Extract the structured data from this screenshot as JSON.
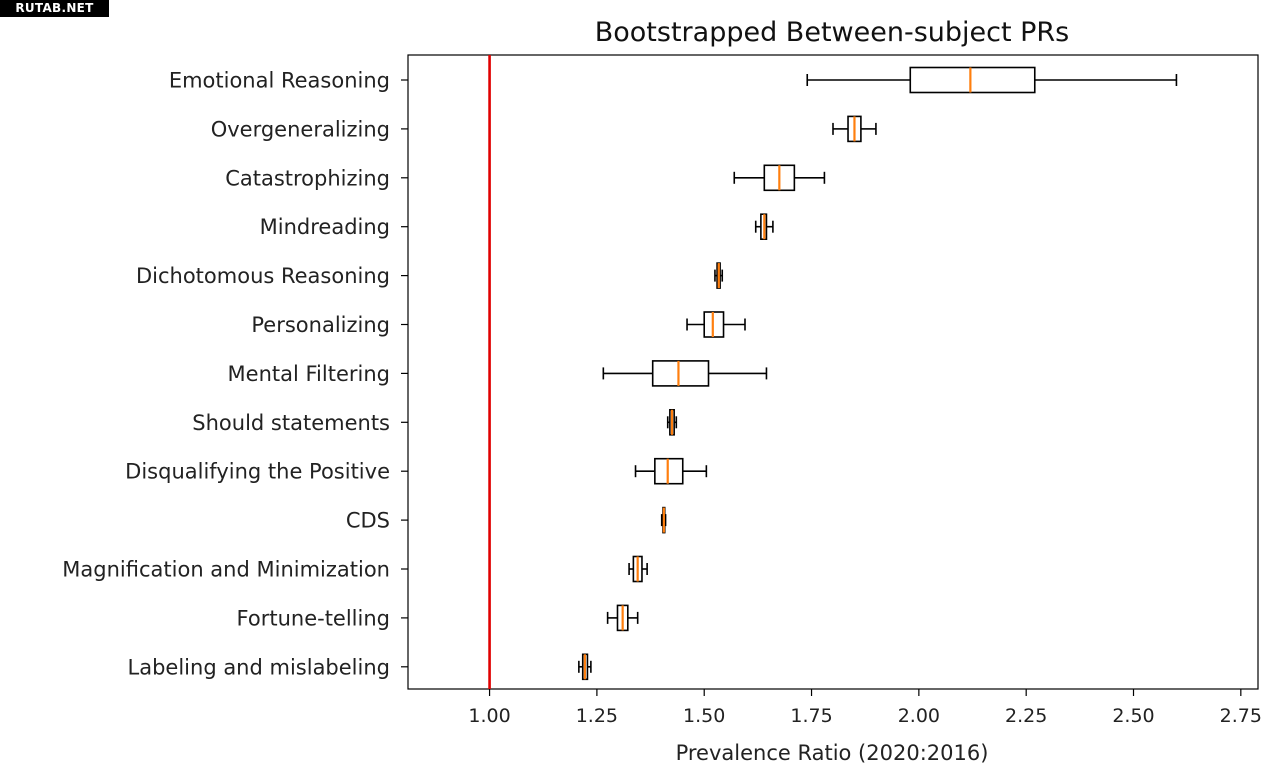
{
  "watermark": "RUTAB.NET",
  "chart_data": {
    "type": "boxplot",
    "orientation": "horizontal",
    "title": "Bootstrapped Between-subject PRs",
    "xlabel": "Prevalence Ratio (2020:2016)",
    "ylabel": "",
    "xlim": [
      0.81,
      2.79
    ],
    "xticks": [
      "1.00",
      "1.25",
      "1.50",
      "1.75",
      "2.00",
      "2.25",
      "2.50",
      "2.75"
    ],
    "reference_line": {
      "x": 1.0,
      "color": "#e00000"
    },
    "colors": {
      "box": "#000000",
      "median": "#ff7f0e",
      "reference": "#e00000"
    },
    "grid": false,
    "legend": "none",
    "categories": [
      "Emotional Reasoning",
      "Overgeneralizing",
      "Catastrophizing",
      "Mindreading",
      "Dichotomous Reasoning",
      "Personalizing",
      "Mental Filtering",
      "Should statements",
      "Disqualifying the Positive",
      "CDS",
      "Magnification and Minimization",
      "Fortune-telling",
      "Labeling and mislabeling"
    ],
    "boxes": [
      {
        "whisker_low": 1.74,
        "q1": 1.98,
        "median": 2.12,
        "q3": 2.27,
        "whisker_high": 2.6
      },
      {
        "whisker_low": 1.8,
        "q1": 1.835,
        "median": 1.85,
        "q3": 1.865,
        "whisker_high": 1.9
      },
      {
        "whisker_low": 1.57,
        "q1": 1.64,
        "median": 1.675,
        "q3": 1.71,
        "whisker_high": 1.78
      },
      {
        "whisker_low": 1.62,
        "q1": 1.632,
        "median": 1.64,
        "q3": 1.645,
        "whisker_high": 1.66
      },
      {
        "whisker_low": 1.525,
        "q1": 1.53,
        "median": 1.534,
        "q3": 1.537,
        "whisker_high": 1.542
      },
      {
        "whisker_low": 1.46,
        "q1": 1.5,
        "median": 1.52,
        "q3": 1.545,
        "whisker_high": 1.595
      },
      {
        "whisker_low": 1.265,
        "q1": 1.38,
        "median": 1.44,
        "q3": 1.51,
        "whisker_high": 1.645
      },
      {
        "whisker_low": 1.415,
        "q1": 1.42,
        "median": 1.425,
        "q3": 1.43,
        "whisker_high": 1.435
      },
      {
        "whisker_low": 1.34,
        "q1": 1.385,
        "median": 1.415,
        "q3": 1.45,
        "whisker_high": 1.505
      },
      {
        "whisker_low": 1.401,
        "q1": 1.404,
        "median": 1.406,
        "q3": 1.408,
        "whisker_high": 1.41
      },
      {
        "whisker_low": 1.325,
        "q1": 1.335,
        "median": 1.345,
        "q3": 1.355,
        "whisker_high": 1.367
      },
      {
        "whisker_low": 1.275,
        "q1": 1.298,
        "median": 1.31,
        "q3": 1.322,
        "whisker_high": 1.345
      },
      {
        "whisker_low": 1.208,
        "q1": 1.217,
        "median": 1.222,
        "q3": 1.228,
        "whisker_high": 1.236
      }
    ]
  }
}
